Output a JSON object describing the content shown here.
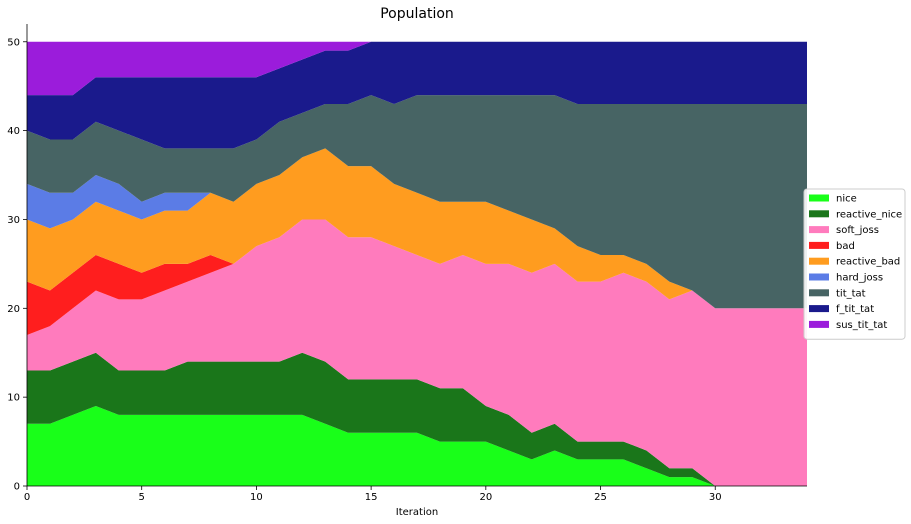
{
  "chart_data": {
    "type": "area",
    "stacked": true,
    "title": "Population",
    "xlabel": "Iteration",
    "ylabel": "",
    "xlim": [
      0,
      34
    ],
    "ylim": [
      0,
      52
    ],
    "xticks": [
      0,
      5,
      10,
      15,
      20,
      25,
      30
    ],
    "yticks": [
      0,
      10,
      20,
      30,
      40,
      50
    ],
    "grid": false,
    "legend_position": "right",
    "x": [
      0,
      1,
      2,
      3,
      4,
      5,
      6,
      7,
      8,
      9,
      10,
      11,
      12,
      13,
      14,
      15,
      16,
      17,
      18,
      19,
      20,
      21,
      22,
      23,
      24,
      25,
      26,
      27,
      28,
      29,
      30,
      31,
      32,
      33,
      34
    ],
    "series": [
      {
        "name": "nice",
        "color": "#19ff19",
        "values": [
          7,
          7,
          8,
          9,
          8,
          8,
          8,
          8,
          8,
          8,
          8,
          8,
          8,
          7,
          6,
          6,
          6,
          6,
          5,
          5,
          5,
          4,
          3,
          4,
          3,
          3,
          3,
          2,
          1,
          1,
          0,
          0,
          0,
          0,
          0
        ]
      },
      {
        "name": "reactive_nice",
        "color": "#1a761a",
        "values": [
          6,
          6,
          6,
          6,
          5,
          5,
          5,
          6,
          6,
          6,
          6,
          6,
          7,
          7,
          6,
          6,
          6,
          6,
          6,
          6,
          4,
          4,
          3,
          3,
          2,
          2,
          2,
          2,
          1,
          1,
          0,
          0,
          0,
          0,
          0
        ]
      },
      {
        "name": "soft_joss",
        "color": "#ff7bbd",
        "values": [
          4,
          5,
          6,
          7,
          8,
          8,
          9,
          9,
          10,
          11,
          13,
          14,
          15,
          16,
          16,
          16,
          15,
          14,
          14,
          15,
          16,
          17,
          18,
          18,
          18,
          18,
          19,
          19,
          19,
          20,
          20,
          20,
          20,
          20,
          20
        ]
      },
      {
        "name": "bad",
        "color": "#ff1e1e",
        "values": [
          6,
          4,
          4,
          4,
          4,
          3,
          3,
          2,
          2,
          0,
          0,
          0,
          0,
          0,
          0,
          0,
          0,
          0,
          0,
          0,
          0,
          0,
          0,
          0,
          0,
          0,
          0,
          0,
          0,
          0,
          0,
          0,
          0,
          0,
          0
        ]
      },
      {
        "name": "reactive_bad",
        "color": "#ff9c1f",
        "values": [
          7,
          7,
          6,
          6,
          6,
          6,
          6,
          6,
          7,
          7,
          7,
          7,
          7,
          8,
          8,
          8,
          7,
          7,
          7,
          6,
          7,
          6,
          6,
          4,
          4,
          3,
          2,
          2,
          2,
          0,
          0,
          0,
          0,
          0,
          0
        ]
      },
      {
        "name": "hard_joss",
        "color": "#5b7ce6",
        "values": [
          4,
          4,
          3,
          3,
          3,
          2,
          2,
          2,
          0,
          0,
          0,
          0,
          0,
          0,
          0,
          0,
          0,
          0,
          0,
          0,
          0,
          0,
          0,
          0,
          0,
          0,
          0,
          0,
          0,
          0,
          0,
          0,
          0,
          0,
          0
        ]
      },
      {
        "name": "tit_tat",
        "color": "#476464",
        "values": [
          6,
          6,
          6,
          6,
          6,
          7,
          5,
          5,
          5,
          6,
          5,
          6,
          5,
          5,
          7,
          8,
          9,
          11,
          12,
          12,
          12,
          13,
          14,
          15,
          16,
          17,
          17,
          18,
          20,
          21,
          23,
          23,
          23,
          23,
          23
        ]
      },
      {
        "name": "f_tit_tat",
        "color": "#1a1a8c",
        "values": [
          4,
          5,
          5,
          5,
          6,
          7,
          8,
          8,
          8,
          8,
          7,
          6,
          6,
          6,
          6,
          6,
          7,
          6,
          6,
          6,
          6,
          6,
          6,
          6,
          7,
          7,
          7,
          7,
          7,
          7,
          7,
          7,
          7,
          7,
          7
        ]
      },
      {
        "name": "sus_tit_tat",
        "color": "#9b1cdb",
        "values": [
          6,
          6,
          6,
          4,
          4,
          4,
          4,
          4,
          4,
          4,
          4,
          3,
          2,
          1,
          1,
          0,
          0,
          0,
          0,
          0,
          0,
          0,
          0,
          0,
          0,
          0,
          0,
          0,
          0,
          0,
          0,
          0,
          0,
          0,
          0
        ]
      }
    ]
  }
}
